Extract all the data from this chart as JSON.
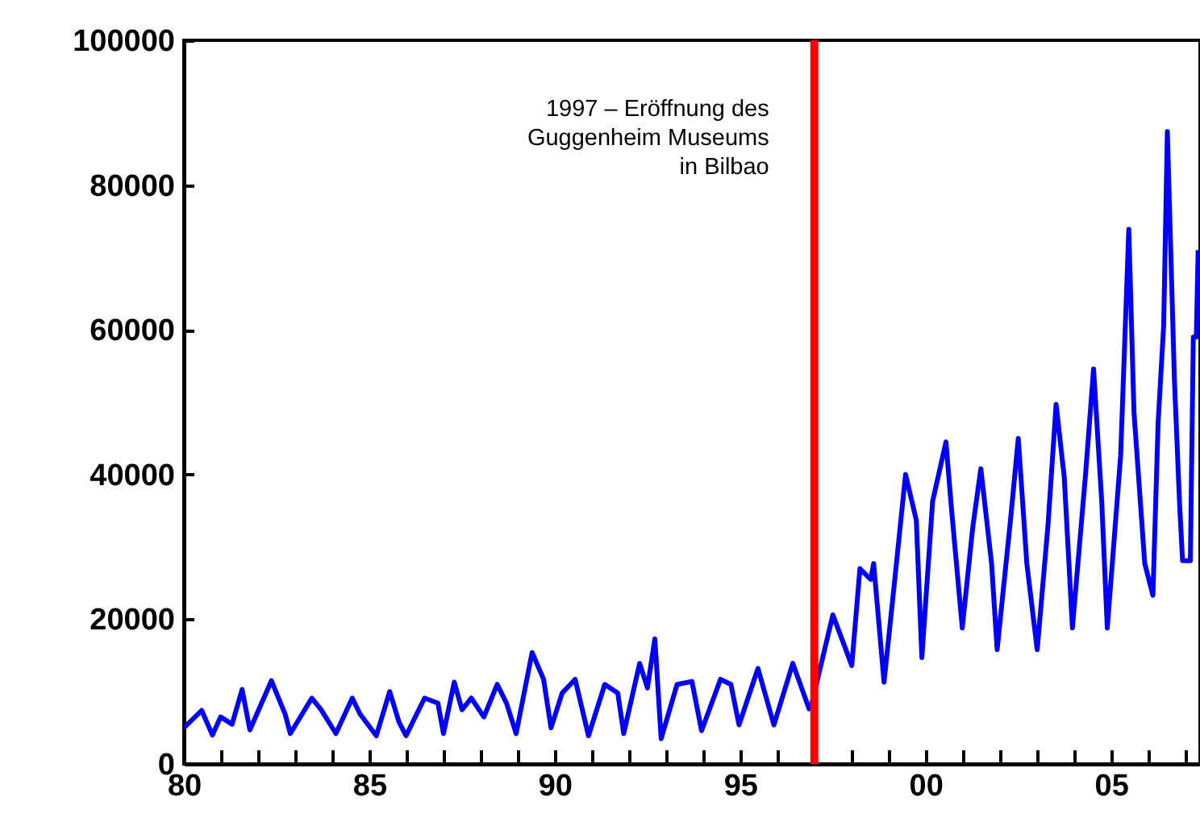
{
  "chart_data": {
    "type": "line",
    "x": [
      1980.0,
      1980.48,
      1980.77,
      1980.99,
      1981.3,
      1981.57,
      1981.78,
      1982.36,
      1982.73,
      1982.87,
      1983.45,
      1983.7,
      1984.1,
      1984.54,
      1984.75,
      1985.19,
      1985.55,
      1985.8,
      1985.99,
      1986.49,
      1986.85,
      1987.0,
      1987.29,
      1987.5,
      1987.75,
      1988.09,
      1988.45,
      1988.7,
      1988.96,
      1989.39,
      1989.7,
      1989.9,
      1990.2,
      1990.55,
      1990.91,
      1991.35,
      1991.7,
      1991.86,
      1992.29,
      1992.5,
      1992.7,
      1992.87,
      1993.3,
      1993.7,
      1993.96,
      1994.47,
      1994.75,
      1994.97,
      1995.48,
      1995.91,
      1996.42,
      1996.86,
      1996.93,
      1997.5,
      1997.8,
      1998.01,
      1998.23,
      1998.52,
      1998.6,
      1998.88,
      1999.17,
      1999.46,
      1999.75,
      1999.9,
      2000.19,
      2000.55,
      2000.7,
      2000.99,
      2001.27,
      2001.49,
      2001.78,
      2001.93,
      2002.29,
      2002.5,
      2002.73,
      2003.01,
      2003.3,
      2003.52,
      2003.74,
      2003.96,
      2004.32,
      2004.53,
      2004.75,
      2004.9,
      2005.26,
      2005.48,
      2005.62,
      2005.91,
      2006.13,
      2006.27,
      2006.42,
      2006.52,
      2006.71,
      2006.85,
      2006.93,
      2007.14,
      2007.22,
      2007.3,
      2007.35
    ],
    "series": [
      {
        "color": "#0000ff",
        "values": [
          5000,
          7400,
          4000,
          6500,
          5500,
          10300,
          4700,
          11500,
          6900,
          4200,
          9100,
          7500,
          4200,
          9100,
          6900,
          3900,
          10000,
          5800,
          3900,
          9100,
          8400,
          4200,
          11300,
          7500,
          9100,
          6500,
          11000,
          8400,
          4200,
          15400,
          11700,
          5000,
          9800,
          11700,
          3900,
          11000,
          9800,
          4200,
          13900,
          10500,
          17300,
          3500,
          11000,
          11400,
          4600,
          11700,
          11000,
          5400,
          13200,
          5400,
          13900,
          7600,
          8300,
          20600,
          16500,
          13600,
          27000,
          25500,
          27700,
          11300,
          25500,
          40000,
          33700,
          14700,
          36300,
          44500,
          35200,
          18800,
          32600,
          40800,
          27700,
          15800,
          33700,
          45000,
          27700,
          15800,
          32900,
          49700,
          39600,
          18800,
          40400,
          54600,
          36300,
          18800,
          42600,
          73900,
          48600,
          27700,
          23300,
          47100,
          60500,
          87400,
          53100,
          35900,
          28100,
          28100,
          59000,
          59000,
          71000
        ]
      }
    ],
    "xlim": [
      1980,
      2007.4
    ],
    "xticks": [
      {
        "value": 1980,
        "label": "80"
      },
      {
        "value": 1981,
        "label": null
      },
      {
        "value": 1982,
        "label": null
      },
      {
        "value": 1983,
        "label": null
      },
      {
        "value": 1984,
        "label": null
      },
      {
        "value": 1985,
        "label": "85"
      },
      {
        "value": 1986,
        "label": null
      },
      {
        "value": 1987,
        "label": null
      },
      {
        "value": 1988,
        "label": null
      },
      {
        "value": 1989,
        "label": null
      },
      {
        "value": 1990,
        "label": "90"
      },
      {
        "value": 1991,
        "label": null
      },
      {
        "value": 1992,
        "label": null
      },
      {
        "value": 1993,
        "label": null
      },
      {
        "value": 1994,
        "label": null
      },
      {
        "value": 1995,
        "label": "95"
      },
      {
        "value": 1996,
        "label": null
      },
      {
        "value": 1997,
        "label": null
      },
      {
        "value": 1998,
        "label": null
      },
      {
        "value": 1999,
        "label": null
      },
      {
        "value": 2000,
        "label": "00"
      },
      {
        "value": 2001,
        "label": null
      },
      {
        "value": 2002,
        "label": null
      },
      {
        "value": 2003,
        "label": null
      },
      {
        "value": 2004,
        "label": null
      },
      {
        "value": 2005,
        "label": "05"
      },
      {
        "value": 2006,
        "label": null
      },
      {
        "value": 2007,
        "label": null
      }
    ],
    "ylim": [
      0,
      100000
    ],
    "yticks": [
      0,
      20000,
      40000,
      60000,
      80000,
      100000
    ],
    "grid": false,
    "marker": "none",
    "line_style": "solid",
    "ref_lines": [
      {
        "axis": "x",
        "value": 1997,
        "label": "1997 – Eröffnung des Guggenheim Museums in Bilbao",
        "color": "#ff0000"
      }
    ]
  }
}
